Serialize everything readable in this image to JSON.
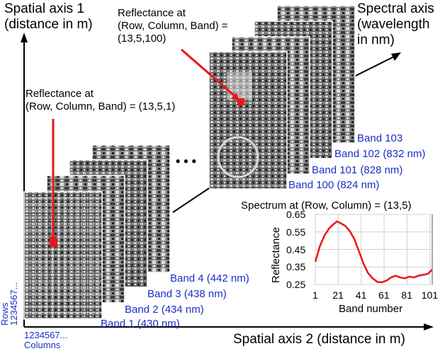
{
  "axes": {
    "spatial_axis_1": [
      "Spatial axis 1",
      "(distance in m)"
    ],
    "spatial_axis_2": "Spatial axis 2 (distance in m)",
    "spectral_axis": [
      "Spectral axis",
      "(wavelength",
      "in nm)"
    ]
  },
  "annotations": {
    "front": [
      "Reflectance at",
      "(Row, Column, Band) = (13,5,1)"
    ],
    "back": [
      "Reflectance at",
      "(Row, Column, Band) =",
      "(13,5,100)"
    ],
    "ellipsis": "• • •"
  },
  "bands_front": [
    "Band 1 (430 nm)",
    "Band 2 (434 nm)",
    "Band 3 (438 nm)",
    "Band 4 (442 nm)"
  ],
  "bands_back": [
    "Band 100 (824 nm)",
    "Band 101 (828 nm)",
    "Band 102 (832 nm)",
    "Band 103"
  ],
  "grid_labels": {
    "rows_word": "Rows",
    "rows_digits": "1234567...",
    "columns_digits": "1234567...",
    "columns_word": "Columns"
  },
  "colors": {
    "marker": "#e8161b",
    "band_text": "#1a2fc4",
    "spectrum_line": "#e8161b"
  },
  "chart_data": {
    "type": "line",
    "title": "Spectrum at (Row, Column) = (13,5)",
    "xlabel": "Band number",
    "ylabel": "Reflectance",
    "xlim": [
      1,
      103
    ],
    "ylim": [
      0.25,
      0.65
    ],
    "xticks": [
      1,
      21,
      41,
      61,
      81,
      101
    ],
    "yticks": [
      0.25,
      0.35,
      0.45,
      0.55,
      0.65
    ],
    "ytick_labels": [
      "0.25",
      "0.35",
      "0.45",
      "0.55",
      "0.65"
    ],
    "grid": true,
    "series": [
      {
        "x": [
          1,
          5,
          9,
          13,
          17,
          20,
          23,
          27,
          31,
          35,
          39,
          43,
          47,
          51,
          55,
          59,
          63,
          67,
          71,
          75,
          79,
          83,
          87,
          91,
          95,
          99,
          103
        ],
        "values": [
          0.38,
          0.47,
          0.53,
          0.57,
          0.595,
          0.61,
          0.6,
          0.585,
          0.555,
          0.51,
          0.44,
          0.37,
          0.315,
          0.285,
          0.265,
          0.262,
          0.272,
          0.29,
          0.3,
          0.29,
          0.285,
          0.295,
          0.29,
          0.3,
          0.305,
          0.31,
          0.335
        ]
      }
    ]
  }
}
